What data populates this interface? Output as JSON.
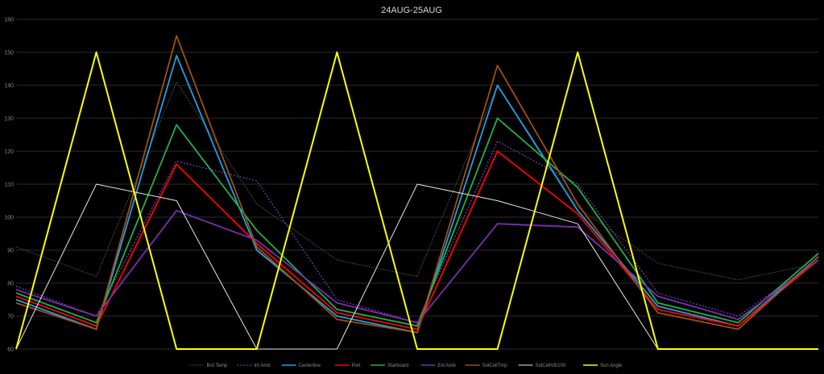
{
  "chart_data": {
    "type": "line",
    "title": "24AUG-25AUG",
    "xlabel": "",
    "ylabel": "",
    "ylim": [
      60,
      160
    ],
    "yticks": [
      60,
      70,
      80,
      90,
      100,
      110,
      120,
      130,
      140,
      150,
      160
    ],
    "grid": "horizontal",
    "legend_position": "bottom",
    "x": [
      0,
      10,
      20,
      30,
      40,
      50,
      60,
      70,
      80,
      90,
      100
    ],
    "series": [
      {
        "name": "Brd Temp",
        "color": "#595959",
        "dash": "1.5,1.5",
        "width": 1,
        "values": [
          91,
          82,
          141,
          104,
          87,
          82,
          140,
          103,
          86,
          81,
          86
        ]
      },
      {
        "name": "Int Amb",
        "color": "#7f3fbf",
        "dash": "2,2",
        "width": 1.2,
        "values": [
          79,
          70,
          117,
          111,
          75,
          68,
          123,
          110,
          77,
          70,
          87
        ]
      },
      {
        "name": "Centerline",
        "color": "#1fa0e6",
        "dash": "",
        "width": 1.8,
        "values": [
          75,
          66,
          149,
          90,
          70,
          65,
          140,
          102,
          73,
          67,
          88
        ]
      },
      {
        "name": "Port",
        "color": "#ff0000",
        "dash": "",
        "width": 1.8,
        "values": [
          76,
          67,
          116,
          92,
          71,
          66,
          120,
          101,
          72,
          67,
          87
        ]
      },
      {
        "name": "Starboard",
        "color": "#22b04a",
        "dash": "",
        "width": 1.8,
        "values": [
          77,
          68,
          128,
          96,
          72,
          67,
          130,
          109,
          74,
          68,
          89
        ]
      },
      {
        "name": "Ext Amb",
        "color": "#7a2fb0",
        "dash": "",
        "width": 1.8,
        "values": [
          78,
          70,
          102,
          93,
          74,
          68,
          98,
          97,
          76,
          69,
          87
        ]
      },
      {
        "name": "SolCellTmp",
        "color": "#a05010",
        "dash": "",
        "width": 1.8,
        "values": [
          74,
          66,
          155,
          91,
          69,
          65,
          146,
          104,
          71,
          66,
          88
        ]
      },
      {
        "name": "SolCellVlt/100",
        "color": "#e8e8e8",
        "dash": "",
        "width": 1,
        "values": [
          60,
          110,
          105,
          60,
          60,
          110,
          105,
          98,
          60,
          60,
          60
        ]
      },
      {
        "name": "Sun Angle",
        "color": "#ffff00",
        "dash": "",
        "width": 2,
        "values": [
          60,
          150,
          60,
          60,
          150,
          60,
          60,
          150,
          60,
          60,
          60
        ]
      }
    ]
  }
}
